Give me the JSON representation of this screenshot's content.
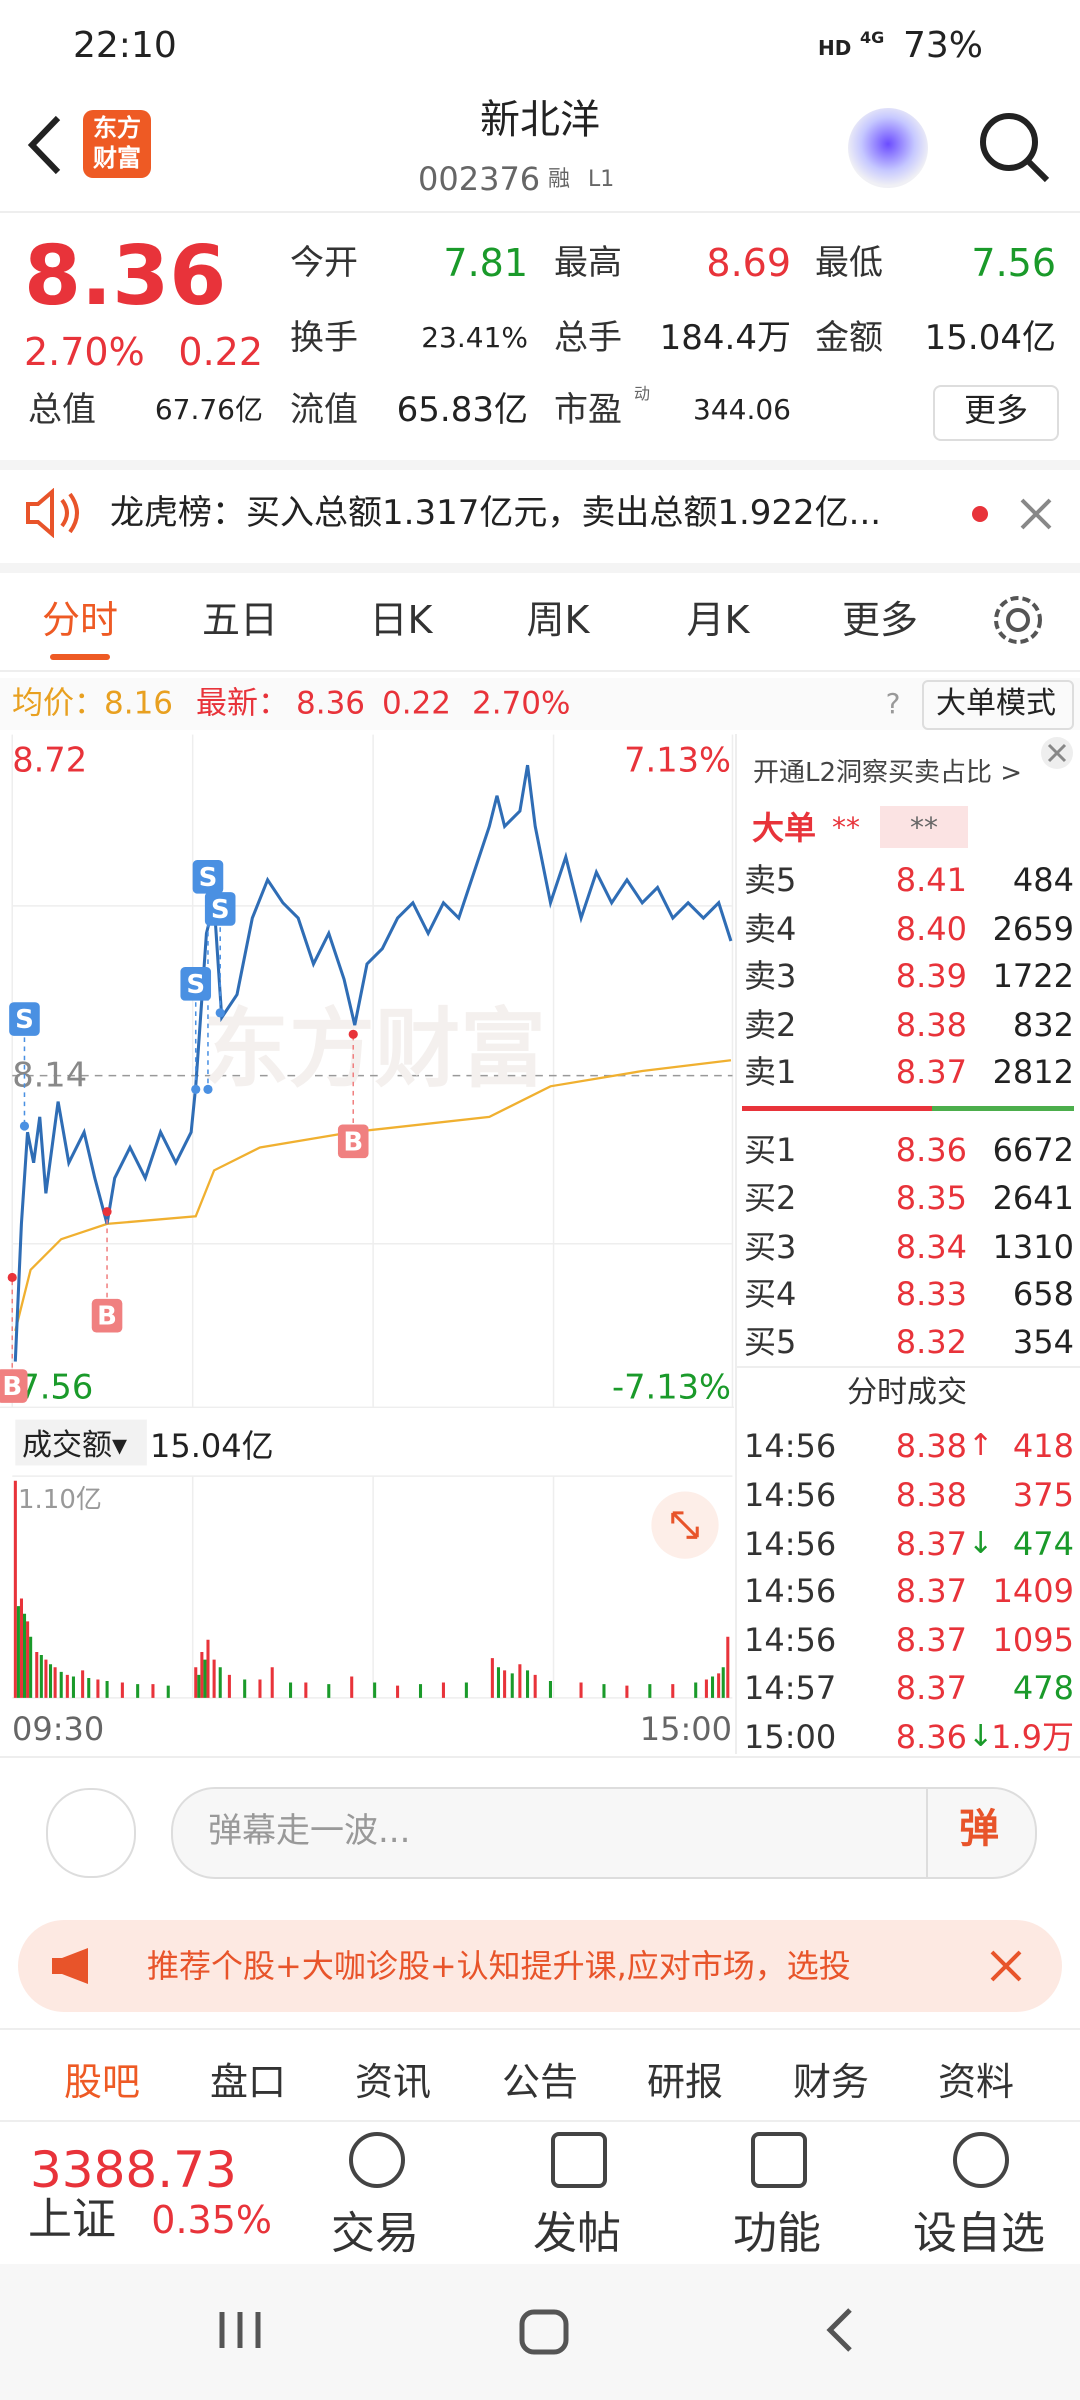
{
  "status_bar": {
    "time": "22:10",
    "hd": "HD",
    "network": "4G",
    "battery": "73%"
  },
  "header": {
    "logo": [
      "东方",
      "财富"
    ],
    "title": "新北洋",
    "code": "002376",
    "badges": [
      "融",
      "L1"
    ]
  },
  "quote": {
    "price": "8.36",
    "change_pct": "2.70%",
    "change": "0.22",
    "stats": [
      {
        "label": "今开",
        "value": "7.81",
        "color": "#1a9a2a"
      },
      {
        "label": "最高",
        "value": "8.69",
        "color": "#e8333a"
      },
      {
        "label": "最低",
        "value": "7.56",
        "color": "#1a9a2a"
      },
      {
        "label": "换手",
        "value": "23.41%",
        "color": "#222222"
      },
      {
        "label": "总手",
        "value": "184.4万",
        "color": "#222222"
      },
      {
        "label": "金额",
        "value": "15.04亿",
        "color": "#222222"
      },
      {
        "label": "总值",
        "value": "67.76亿",
        "color": "#222222"
      },
      {
        "label": "流值",
        "value": "65.83亿",
        "color": "#222222"
      },
      {
        "label": "市盈",
        "value": "344.06",
        "color": "#222222"
      }
    ],
    "more": "更多",
    "pe_tag": "动"
  },
  "notice": {
    "text": "龙虎榜：买入总额1.317亿元，卖出总额1.922亿..."
  },
  "tabs": [
    "分时",
    "五日",
    "日K",
    "周K",
    "月K",
    "更多"
  ],
  "info_bar": {
    "avg_label": "均价：",
    "avg": "8.16",
    "latest_label": "最新：",
    "latest": "8.36",
    "change": "0.22",
    "pct": "2.70%",
    "help": "?",
    "mode": "大单模式"
  },
  "chart": {
    "high": "8.72",
    "high_pct": "7.13%",
    "base": "8.14",
    "low": "7.56",
    "low_pct": "-7.13%",
    "watermark": "东方财富",
    "markers": [
      "S",
      "S",
      "S",
      "S",
      "B",
      "B",
      "B"
    ]
  },
  "order_book": {
    "title": "开通L2洞察买卖占比 >",
    "big_label": "大单",
    "big_values": [
      "**",
      "**"
    ],
    "asks": [
      {
        "label": "卖5",
        "price": "8.41",
        "volume": "484"
      },
      {
        "label": "卖4",
        "price": "8.40",
        "volume": "2659"
      },
      {
        "label": "卖3",
        "price": "8.39",
        "volume": "1722"
      },
      {
        "label": "卖2",
        "price": "8.38",
        "volume": "832"
      },
      {
        "label": "卖1",
        "price": "8.37",
        "volume": "2812"
      }
    ],
    "bids": [
      {
        "label": "买1",
        "price": "8.36",
        "volume": "6672"
      },
      {
        "label": "买2",
        "price": "8.35",
        "volume": "2641"
      },
      {
        "label": "买3",
        "price": "8.34",
        "volume": "1310"
      },
      {
        "label": "买4",
        "price": "8.33",
        "volume": "658"
      },
      {
        "label": "买5",
        "price": "8.32",
        "volume": "354"
      }
    ]
  },
  "trades": {
    "title": "分时成交",
    "rows": [
      {
        "time": "14:56",
        "price": "8.38",
        "arrow": "↑",
        "volume": "418",
        "color": "#e8333a"
      },
      {
        "time": "14:56",
        "price": "8.38",
        "volume": "375",
        "color": "#e8333a"
      },
      {
        "time": "14:56",
        "price": "8.37",
        "arrow": "↓",
        "volume": "474",
        "color": "#1a9a2a"
      },
      {
        "time": "14:56",
        "price": "8.37",
        "volume": "1409",
        "color": "#e8333a"
      },
      {
        "time": "14:56",
        "price": "8.37",
        "volume": "1095",
        "color": "#e8333a"
      },
      {
        "time": "14:57",
        "price": "8.37",
        "volume": "478",
        "color": "#1a9a2a"
      },
      {
        "time": "15:00",
        "price": "8.36",
        "arrow": "↓",
        "volume": "1.9万",
        "color": "#e8333a"
      }
    ]
  },
  "volume": {
    "label": "成交额▾",
    "total": "15.04亿",
    "max": "1.10亿",
    "start": "09:30",
    "end": "15:00"
  },
  "comment": {
    "placeholder": "弹幕走一波...",
    "button": "弹"
  },
  "promo": {
    "text": "推荐个股+大咖诊股+认知提升课,应对市场，选投"
  },
  "sub_tabs": [
    "股吧",
    "盘口",
    "资讯",
    "公告",
    "研报",
    "财务",
    "资料"
  ],
  "bottom_nav": {
    "index_value": "3388.73",
    "index_name": "上证",
    "index_pct": "0.35%",
    "items": [
      "交易",
      "发帖",
      "功能",
      "设自选"
    ]
  }
}
